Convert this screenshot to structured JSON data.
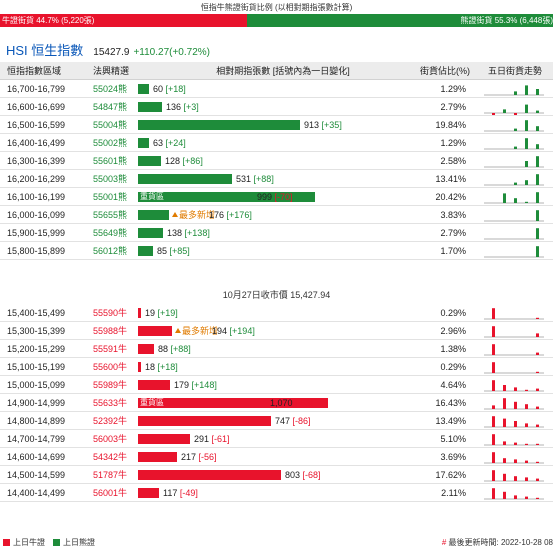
{
  "header": {
    "title": "恒指牛熊證街貨比例 (以相對期指張數計算)",
    "bull_label": "牛證街貨 44.7% (5,220張)",
    "bear_label": "熊證街貨 55.3% (6,448張)",
    "bull_pct": 44.7
  },
  "index": {
    "name": "HSI 恒生指數",
    "value": "15427.9",
    "change": "+110.27(+0.72%)"
  },
  "table": {
    "columns": {
      "range": "恒指指數區域",
      "code": "法興精選",
      "contracts": "相對期指張數 [括號內為一日變化]",
      "pct": "街貨佔比(%)",
      "trend": "五日街貨走勢"
    },
    "heavy_label": "重貨區",
    "new_label": "最多新增",
    "bear_rows": [
      {
        "range": "16,700-16,799",
        "code": "55024熊",
        "contracts": "60",
        "delta": "[+18]",
        "value": 60,
        "pct": "1.29%",
        "spark": [
          0,
          0,
          0.3,
          0.8,
          0.5
        ]
      },
      {
        "range": "16,600-16,699",
        "code": "54847熊",
        "contracts": "136",
        "delta": "[+3]",
        "value": 136,
        "pct": "2.79%",
        "spark": [
          -0.4,
          0.3,
          -0.6,
          0.7,
          0.2
        ]
      },
      {
        "range": "16,500-16,599",
        "code": "55004熊",
        "contracts": "913",
        "delta": "[+35]",
        "value": 913,
        "pct": "19.84%",
        "spark": [
          0,
          0,
          0.2,
          0.9,
          0.4
        ]
      },
      {
        "range": "16,400-16,499",
        "code": "55002熊",
        "contracts": "63",
        "delta": "[+24]",
        "value": 63,
        "pct": "1.29%",
        "spark": [
          0,
          0,
          0.2,
          0.9,
          0.4
        ]
      },
      {
        "range": "16,300-16,399",
        "code": "55601熊",
        "contracts": "128",
        "delta": "[+86]",
        "value": 128,
        "pct": "2.58%",
        "spark": [
          0,
          0,
          0,
          0.5,
          0.9
        ]
      },
      {
        "range": "16,200-16,299",
        "code": "55003熊",
        "contracts": "531",
        "delta": "[+88]",
        "value": 531,
        "pct": "13.41%",
        "spark": [
          0,
          0,
          0.2,
          0.4,
          0.9
        ]
      },
      {
        "range": "16,100-16,199",
        "code": "55001熊",
        "contracts": "999",
        "delta": "[-70]",
        "value": 999,
        "pct": "20.42%",
        "heavy": true,
        "spark": [
          0,
          0.8,
          0.4,
          0.1,
          0.9
        ]
      },
      {
        "range": "16,000-16,099",
        "code": "55655熊",
        "contracts": "176",
        "delta": "[+176]",
        "value": 176,
        "pct": "3.83%",
        "new": true,
        "spark": [
          0,
          0,
          0,
          0,
          0.9
        ]
      },
      {
        "range": "15,900-15,999",
        "code": "55649熊",
        "contracts": "138",
        "delta": "[+138]",
        "value": 138,
        "pct": "2.79%",
        "spark": [
          0,
          0,
          0,
          0,
          0.9
        ]
      },
      {
        "range": "15,800-15,899",
        "code": "56012熊",
        "contracts": "85",
        "delta": "[+85]",
        "value": 85,
        "pct": "1.70%",
        "spark": [
          0,
          0,
          0,
          0,
          0.9
        ]
      }
    ],
    "mid_label": "10月27日收市價 15,427.94",
    "bull_rows": [
      {
        "range": "15,400-15,499",
        "code": "55590牛",
        "contracts": "19",
        "delta": "[+19]",
        "value": 19,
        "pct": "0.29%",
        "spark": [
          0.9,
          0,
          0,
          0,
          0.1
        ]
      },
      {
        "range": "15,300-15,399",
        "code": "55988牛",
        "contracts": "194",
        "delta": "[+194]",
        "value": 194,
        "pct": "2.96%",
        "new": true,
        "spark": [
          0.9,
          0,
          0,
          0,
          0.3
        ]
      },
      {
        "range": "15,200-15,299",
        "code": "55591牛",
        "contracts": "88",
        "delta": "[+88]",
        "value": 88,
        "pct": "1.38%",
        "spark": [
          0.9,
          0,
          0,
          0,
          0.2
        ]
      },
      {
        "range": "15,100-15,199",
        "code": "55600牛",
        "contracts": "18",
        "delta": "[+18]",
        "value": 18,
        "pct": "0.29%",
        "spark": [
          0.9,
          0,
          0,
          0,
          0.1
        ]
      },
      {
        "range": "15,000-15,099",
        "code": "55989牛",
        "contracts": "179",
        "delta": "[+148]",
        "value": 179,
        "pct": "4.64%",
        "spark": [
          0.9,
          0.5,
          0.3,
          0.1,
          0.2
        ]
      },
      {
        "range": "14,900-14,999",
        "code": "55633牛",
        "contracts": "1,070",
        "delta": "[-53]",
        "value": 1070,
        "pct": "16.43%",
        "heavy": true,
        "spark": [
          0.3,
          0.9,
          0.6,
          0.4,
          0.2
        ]
      },
      {
        "range": "14,800-14,899",
        "code": "52392牛",
        "contracts": "747",
        "delta": "[-86]",
        "value": 747,
        "pct": "13.49%",
        "spark": [
          0.9,
          0.7,
          0.5,
          0.3,
          0.2
        ]
      },
      {
        "range": "14,700-14,799",
        "code": "56003牛",
        "contracts": "291",
        "delta": "[-61]",
        "value": 291,
        "pct": "5.10%",
        "spark": [
          0.9,
          0.3,
          0.2,
          0.1,
          0.1
        ]
      },
      {
        "range": "14,600-14,699",
        "code": "54342牛",
        "contracts": "217",
        "delta": "[-56]",
        "value": 217,
        "pct": "3.69%",
        "spark": [
          0.9,
          0.4,
          0.3,
          0.2,
          0.1
        ]
      },
      {
        "range": "14,500-14,599",
        "code": "51787牛",
        "contracts": "803",
        "delta": "[-68]",
        "value": 803,
        "pct": "17.62%",
        "spark": [
          0.9,
          0.6,
          0.4,
          0.3,
          0.2
        ]
      },
      {
        "range": "14,400-14,499",
        "code": "56001牛",
        "contracts": "117",
        "delta": "[-49]",
        "value": 117,
        "pct": "2.11%",
        "spark": [
          0.9,
          0.6,
          0.3,
          0.2,
          0.1
        ]
      }
    ]
  },
  "legend": {
    "bull": "上日牛證",
    "bear": "上日熊證",
    "update": "最後更新時間: 2022-10-28 08"
  },
  "colors": {
    "bull": "#e8132c",
    "bear": "#1e8c3a",
    "accent": "#0a57b8"
  }
}
